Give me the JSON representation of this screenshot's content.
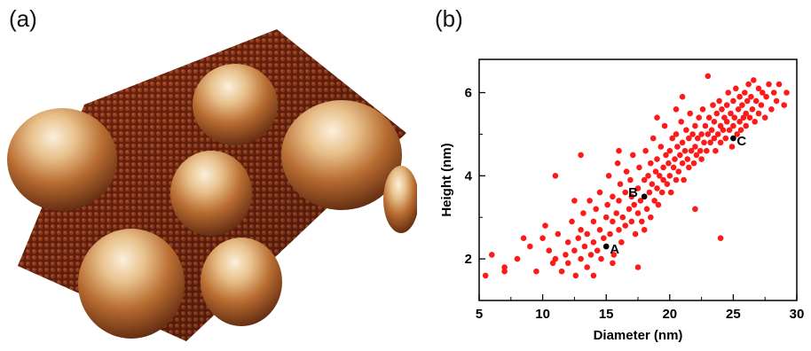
{
  "panels": {
    "a": {
      "label": "(a)"
    },
    "b": {
      "label": "(b)"
    }
  },
  "colors": {
    "points": "#ff1a1a",
    "marked": "#000000",
    "axis": "#000000",
    "surface_dark": "#5a1a0e",
    "surface_mid": "#8a3318",
    "mound_light": "#f3ddb9",
    "mound_mid": "#c98a4a",
    "mound_dark": "#7a3a16"
  },
  "chart_data": {
    "type": "scatter",
    "title": "",
    "xlabel": "Diameter (nm)",
    "ylabel": "Height (nm)",
    "xlim": [
      5,
      30
    ],
    "ylim": [
      1.0,
      6.8
    ],
    "xticks": [
      5,
      10,
      15,
      20,
      25,
      30
    ],
    "yticks": [
      2,
      4,
      6
    ],
    "grid": false,
    "legend": "none",
    "annotations": [
      {
        "text": "A",
        "x": 15.0,
        "y": 2.3
      },
      {
        "text": "B",
        "x": 18.0,
        "y": 3.5
      },
      {
        "text": "C",
        "x": 25.0,
        "y": 4.9
      }
    ],
    "series": [
      {
        "points": [
          [
            5.5,
            1.6
          ],
          [
            6.0,
            2.1
          ],
          [
            7.0,
            1.8
          ],
          [
            7.0,
            1.7
          ],
          [
            8.5,
            2.5
          ],
          [
            9.0,
            2.3
          ],
          [
            10.2,
            2.8
          ],
          [
            10.5,
            2.2
          ],
          [
            10.8,
            1.9
          ],
          [
            11.0,
            2.0
          ],
          [
            11.2,
            2.6
          ],
          [
            11.5,
            1.7
          ],
          [
            11.8,
            2.1
          ],
          [
            12.0,
            2.4
          ],
          [
            12.0,
            1.9
          ],
          [
            12.3,
            2.9
          ],
          [
            12.5,
            2.2
          ],
          [
            12.6,
            1.6
          ],
          [
            12.8,
            2.5
          ],
          [
            13.0,
            2.0
          ],
          [
            13.0,
            2.7
          ],
          [
            13.2,
            3.1
          ],
          [
            13.3,
            2.3
          ],
          [
            13.5,
            1.8
          ],
          [
            13.5,
            2.6
          ],
          [
            13.7,
            3.4
          ],
          [
            13.8,
            2.1
          ],
          [
            14.0,
            2.4
          ],
          [
            14.0,
            2.9
          ],
          [
            14.2,
            3.2
          ],
          [
            14.3,
            2.2
          ],
          [
            14.5,
            2.7
          ],
          [
            14.5,
            3.6
          ],
          [
            14.6,
            2.0
          ],
          [
            14.8,
            2.5
          ],
          [
            15.0,
            3.0
          ],
          [
            15.0,
            2.3
          ],
          [
            15.1,
            3.3
          ],
          [
            15.2,
            4.0
          ],
          [
            15.3,
            2.6
          ],
          [
            15.5,
            2.9
          ],
          [
            15.5,
            3.5
          ],
          [
            15.6,
            2.1
          ],
          [
            15.8,
            3.1
          ],
          [
            15.9,
            4.3
          ],
          [
            16.0,
            2.7
          ],
          [
            16.0,
            3.4
          ],
          [
            16.1,
            3.8
          ],
          [
            16.2,
            2.4
          ],
          [
            16.3,
            3.0
          ],
          [
            16.5,
            3.6
          ],
          [
            16.5,
            2.8
          ],
          [
            16.6,
            4.1
          ],
          [
            16.8,
            3.2
          ],
          [
            16.9,
            3.9
          ],
          [
            17.0,
            2.9
          ],
          [
            17.0,
            3.5
          ],
          [
            17.1,
            4.5
          ],
          [
            17.2,
            3.3
          ],
          [
            17.3,
            2.6
          ],
          [
            17.5,
            3.7
          ],
          [
            17.5,
            3.1
          ],
          [
            17.6,
            4.2
          ],
          [
            17.7,
            3.4
          ],
          [
            17.8,
            2.9
          ],
          [
            18.0,
            3.5
          ],
          [
            18.0,
            3.9
          ],
          [
            18.1,
            4.6
          ],
          [
            18.2,
            3.2
          ],
          [
            18.3,
            4.0
          ],
          [
            18.4,
            3.6
          ],
          [
            18.5,
            4.3
          ],
          [
            18.5,
            3.0
          ],
          [
            18.6,
            3.8
          ],
          [
            18.7,
            4.9
          ],
          [
            18.8,
            3.4
          ],
          [
            18.9,
            4.1
          ],
          [
            19.0,
            3.7
          ],
          [
            19.0,
            4.4
          ],
          [
            19.1,
            3.3
          ],
          [
            19.2,
            4.0
          ],
          [
            19.3,
            4.7
          ],
          [
            19.4,
            3.6
          ],
          [
            19.5,
            4.2
          ],
          [
            19.5,
            3.9
          ],
          [
            19.6,
            5.2
          ],
          [
            19.7,
            4.5
          ],
          [
            19.8,
            3.8
          ],
          [
            19.9,
            4.3
          ],
          [
            20.0,
            4.0
          ],
          [
            20.0,
            4.6
          ],
          [
            20.1,
            3.6
          ],
          [
            20.2,
            4.9
          ],
          [
            20.3,
            4.2
          ],
          [
            20.4,
            4.4
          ],
          [
            20.5,
            3.9
          ],
          [
            20.5,
            5.0
          ],
          [
            20.6,
            4.7
          ],
          [
            20.7,
            4.1
          ],
          [
            20.8,
            4.5
          ],
          [
            20.9,
            5.3
          ],
          [
            21.0,
            4.3
          ],
          [
            21.0,
            4.8
          ],
          [
            21.1,
            3.9
          ],
          [
            21.2,
            4.6
          ],
          [
            21.3,
            5.1
          ],
          [
            21.4,
            4.4
          ],
          [
            21.5,
            4.9
          ],
          [
            21.5,
            4.2
          ],
          [
            21.6,
            5.5
          ],
          [
            21.7,
            4.6
          ],
          [
            21.8,
            5.0
          ],
          [
            21.9,
            4.3
          ],
          [
            22.0,
            4.7
          ],
          [
            22.0,
            5.2
          ],
          [
            22.1,
            4.5
          ],
          [
            22.2,
            4.9
          ],
          [
            22.3,
            5.4
          ],
          [
            22.4,
            4.6
          ],
          [
            22.5,
            5.0
          ],
          [
            22.5,
            4.4
          ],
          [
            22.6,
            5.6
          ],
          [
            22.7,
            4.8
          ],
          [
            22.8,
            5.2
          ],
          [
            22.9,
            4.6
          ],
          [
            23.0,
            5.0
          ],
          [
            23.0,
            6.4
          ],
          [
            23.1,
            5.4
          ],
          [
            23.2,
            4.8
          ],
          [
            23.3,
            5.1
          ],
          [
            23.4,
            5.7
          ],
          [
            23.5,
            4.9
          ],
          [
            23.5,
            5.3
          ],
          [
            23.6,
            4.6
          ],
          [
            23.7,
            5.5
          ],
          [
            23.8,
            5.0
          ],
          [
            23.9,
            5.8
          ],
          [
            24.0,
            5.2
          ],
          [
            24.0,
            4.8
          ],
          [
            24.1,
            5.6
          ],
          [
            24.2,
            5.1
          ],
          [
            24.3,
            5.4
          ],
          [
            24.4,
            4.9
          ],
          [
            24.5,
            5.7
          ],
          [
            24.5,
            5.3
          ],
          [
            24.6,
            6.0
          ],
          [
            24.7,
            5.1
          ],
          [
            24.8,
            5.5
          ],
          [
            24.9,
            4.7
          ],
          [
            25.0,
            5.2
          ],
          [
            25.0,
            5.8
          ],
          [
            25.1,
            5.4
          ],
          [
            25.2,
            6.1
          ],
          [
            25.3,
            5.0
          ],
          [
            25.4,
            5.6
          ],
          [
            25.5,
            5.3
          ],
          [
            25.5,
            5.9
          ],
          [
            25.6,
            5.1
          ],
          [
            25.7,
            5.7
          ],
          [
            25.8,
            5.4
          ],
          [
            25.9,
            6.0
          ],
          [
            26.0,
            5.5
          ],
          [
            26.0,
            5.2
          ],
          [
            26.1,
            5.8
          ],
          [
            26.2,
            6.2
          ],
          [
            26.3,
            5.4
          ],
          [
            26.4,
            5.9
          ],
          [
            26.5,
            5.6
          ],
          [
            26.6,
            6.3
          ],
          [
            26.7,
            5.3
          ],
          [
            26.8,
            5.8
          ],
          [
            27.0,
            5.5
          ],
          [
            27.0,
            6.1
          ],
          [
            27.2,
            5.7
          ],
          [
            27.3,
            6.0
          ],
          [
            27.5,
            5.4
          ],
          [
            27.6,
            5.9
          ],
          [
            27.8,
            6.2
          ],
          [
            28.0,
            5.6
          ],
          [
            28.2,
            6.0
          ],
          [
            28.4,
            5.8
          ],
          [
            28.6,
            6.2
          ],
          [
            29.0,
            5.7
          ],
          [
            29.2,
            6.0
          ],
          [
            24.0,
            2.5
          ],
          [
            22.0,
            3.2
          ],
          [
            13.0,
            4.5
          ],
          [
            17.5,
            1.8
          ],
          [
            11.0,
            4.0
          ],
          [
            20.5,
            5.6
          ],
          [
            14.0,
            1.6
          ],
          [
            12.5,
            3.4
          ],
          [
            16.0,
            4.6
          ],
          [
            19.0,
            5.4
          ],
          [
            21.0,
            5.9
          ],
          [
            18.0,
            2.7
          ],
          [
            15.5,
            1.9
          ],
          [
            10.0,
            2.5
          ],
          [
            9.5,
            1.7
          ],
          [
            8.0,
            2.0
          ]
        ]
      }
    ]
  }
}
